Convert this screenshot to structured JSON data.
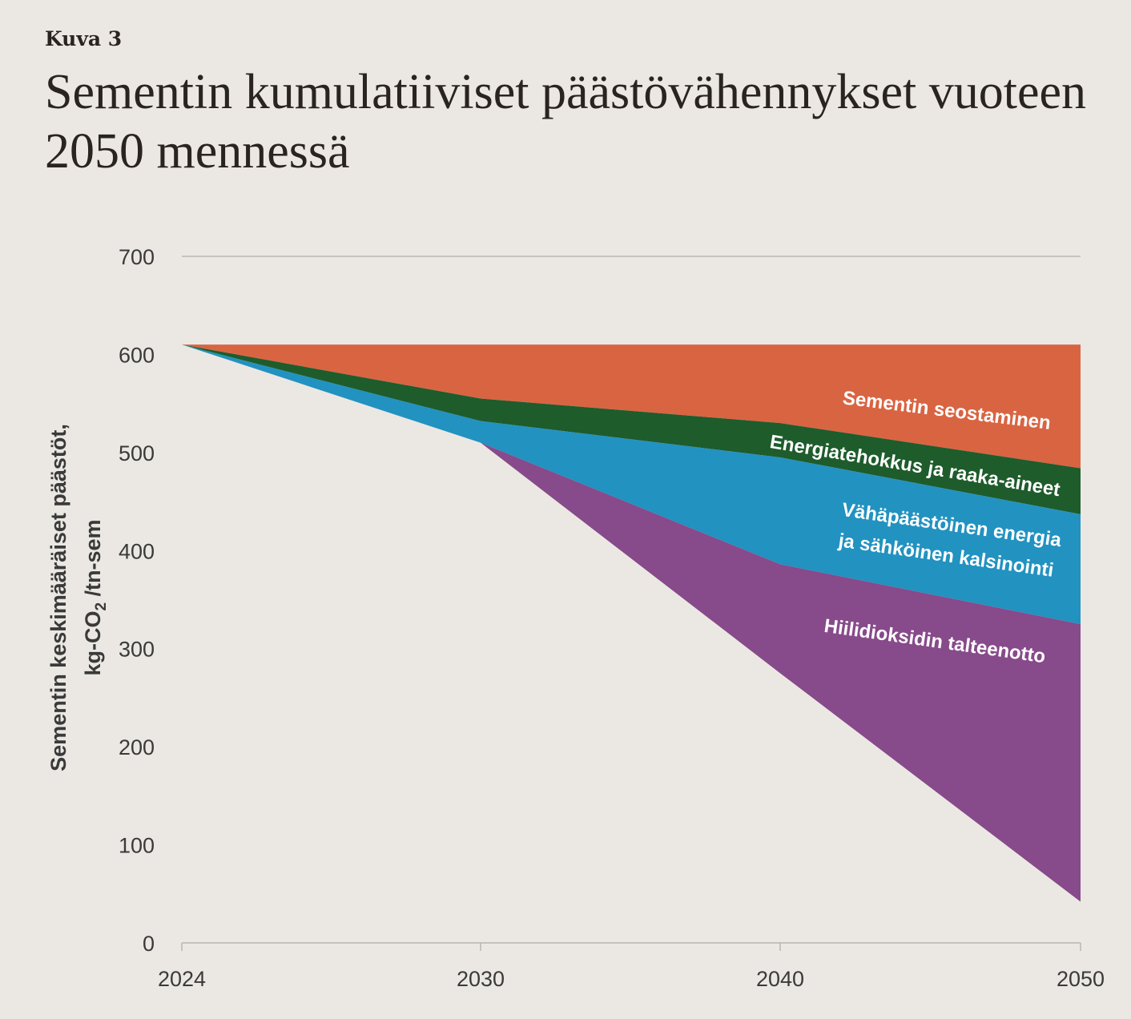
{
  "figure": {
    "kicker": "Kuva 3",
    "title": "Sementin kumulatiiviset päästövähennykset vuoteen 2050 mennessä"
  },
  "chart_data": {
    "type": "area",
    "stacked": true,
    "x": [
      2024,
      2030,
      2040,
      2050
    ],
    "xticks": [
      "2024",
      "2030",
      "2040",
      "2050"
    ],
    "yticks": [
      "0",
      "100",
      "200",
      "300",
      "400",
      "500",
      "600",
      "700"
    ],
    "ylim": [
      0,
      700
    ],
    "ylabel": {
      "line1": "Sementin keskimääräiset päästöt,",
      "line2_main": "kg-CO",
      "line2_sub": "2",
      "line2_rest": " /tn-sem"
    },
    "grid": "horizontal line at 700 only",
    "baseline": [
      610,
      610,
      610,
      610
    ],
    "series": [
      {
        "name": "Sementin seostaminen",
        "color": "#d96442",
        "upper": [
          610,
          610,
          610,
          610
        ],
        "lower": [
          610,
          555,
          530,
          484
        ]
      },
      {
        "name": "Energiatehokkus ja raaka-aineet",
        "color": "#1e5c2c",
        "upper": [
          610,
          555,
          530,
          484
        ],
        "lower": [
          610,
          532,
          495,
          437
        ]
      },
      {
        "name": "Vähäpäästöinen energia ja sähköinen kalsinointi",
        "color": "#2292c0",
        "upper": [
          610,
          532,
          495,
          437
        ],
        "lower": [
          610,
          510,
          386,
          325
        ],
        "label_lines": [
          "Vähäpäästöinen energia",
          "ja sähköinen kalsinointi"
        ]
      },
      {
        "name": "Hiilidioksidin talteenotto",
        "color": "#874a8a",
        "upper": [
          610,
          510,
          386,
          325
        ],
        "lower": [
          610,
          510,
          275,
          42
        ]
      }
    ]
  }
}
